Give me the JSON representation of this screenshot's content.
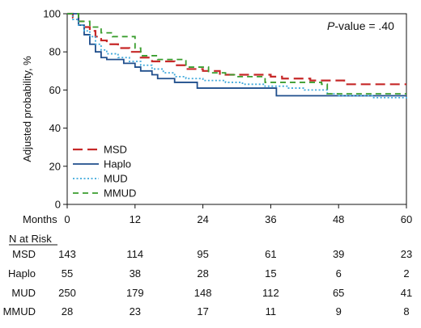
{
  "chart_data": {
    "type": "line",
    "step": true,
    "ylabel": "Adjusted probability, %",
    "xlabel": "Months",
    "xlim": [
      0,
      60
    ],
    "ylim": [
      0,
      100
    ],
    "x_ticks": [
      0,
      12,
      24,
      36,
      48,
      60
    ],
    "y_ticks": [
      0,
      20,
      40,
      60,
      80,
      100
    ],
    "grid": false,
    "legend_position": "bottom-left",
    "annotation": {
      "italic": "P",
      "rest": "-value = .40"
    },
    "series": [
      {
        "name": "MSD",
        "color": "#c62828",
        "dash": "12,6",
        "width": 2.2,
        "points": [
          [
            0,
            100
          ],
          [
            1,
            98
          ],
          [
            2,
            96
          ],
          [
            3,
            93
          ],
          [
            4,
            91
          ],
          [
            5,
            88
          ],
          [
            6,
            86
          ],
          [
            7,
            84
          ],
          [
            9,
            82
          ],
          [
            11,
            80
          ],
          [
            13,
            77
          ],
          [
            15,
            75
          ],
          [
            19,
            73
          ],
          [
            21,
            71
          ],
          [
            24,
            70
          ],
          [
            27,
            68
          ],
          [
            36,
            67
          ],
          [
            38,
            66
          ],
          [
            43,
            65
          ],
          [
            49,
            63
          ],
          [
            60,
            63
          ]
        ]
      },
      {
        "name": "Haplo",
        "color": "#1f4e8c",
        "dash": "",
        "width": 1.8,
        "points": [
          [
            0,
            100
          ],
          [
            2,
            94
          ],
          [
            3,
            89
          ],
          [
            4,
            84
          ],
          [
            5,
            80
          ],
          [
            6,
            77
          ],
          [
            7,
            76
          ],
          [
            10,
            74
          ],
          [
            12,
            72
          ],
          [
            13,
            70
          ],
          [
            15,
            68
          ],
          [
            16,
            66
          ],
          [
            19,
            64
          ],
          [
            23,
            61
          ],
          [
            36,
            61
          ],
          [
            37,
            57
          ],
          [
            60,
            57
          ]
        ]
      },
      {
        "name": "MUD",
        "color": "#3fa9dc",
        "dash": "2,2.5",
        "width": 1.8,
        "points": [
          [
            0,
            100
          ],
          [
            1,
            97
          ],
          [
            2,
            94
          ],
          [
            3,
            91
          ],
          [
            4,
            88
          ],
          [
            5,
            84
          ],
          [
            6,
            81
          ],
          [
            7,
            79
          ],
          [
            9,
            77
          ],
          [
            11,
            75
          ],
          [
            13,
            73
          ],
          [
            15,
            71
          ],
          [
            17,
            69
          ],
          [
            19,
            67
          ],
          [
            21,
            66
          ],
          [
            24,
            65
          ],
          [
            28,
            64
          ],
          [
            31,
            63
          ],
          [
            35,
            62
          ],
          [
            39,
            61
          ],
          [
            42,
            60
          ],
          [
            46,
            58
          ],
          [
            48,
            57
          ],
          [
            54,
            56
          ],
          [
            60,
            55
          ]
        ]
      },
      {
        "name": "MMUD",
        "color": "#3a9d2e",
        "dash": "7,5",
        "width": 1.8,
        "points": [
          [
            0,
            100
          ],
          [
            2,
            96
          ],
          [
            4,
            93
          ],
          [
            6,
            90
          ],
          [
            8,
            88
          ],
          [
            12,
            82
          ],
          [
            13,
            78
          ],
          [
            16,
            76
          ],
          [
            20,
            76
          ],
          [
            21,
            72
          ],
          [
            25,
            69
          ],
          [
            28,
            68
          ],
          [
            30,
            67
          ],
          [
            35,
            64
          ],
          [
            45,
            63
          ],
          [
            46,
            58
          ],
          [
            60,
            58
          ]
        ]
      }
    ],
    "risk_table": {
      "header": "N at Risk",
      "rows": [
        {
          "label": "MSD",
          "values": [
            "143",
            "114",
            "95",
            "61",
            "39",
            "23"
          ]
        },
        {
          "label": "Haplo",
          "values": [
            "55",
            "38",
            "28",
            "15",
            "6",
            "2"
          ]
        },
        {
          "label": "MUD",
          "values": [
            "250",
            "179",
            "148",
            "112",
            "65",
            "41"
          ]
        },
        {
          "label": "MMUD",
          "values": [
            "28",
            "23",
            "17",
            "11",
            "9",
            "8"
          ]
        }
      ]
    }
  }
}
